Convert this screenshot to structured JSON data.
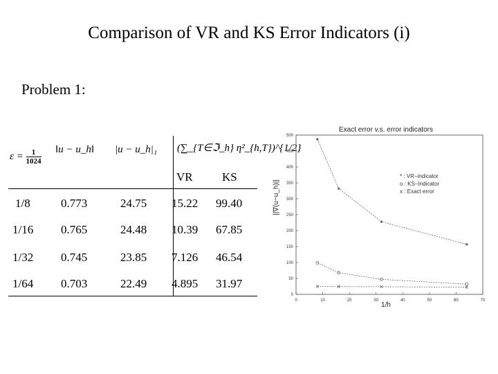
{
  "title": "Comparison of VR and KS Error Indicators (i)",
  "subtitle": "Problem 1:",
  "table": {
    "header": {
      "eps_label": "ε =",
      "eps_num": "1",
      "eps_den": "1024",
      "col1": "‖u − u_h‖",
      "col2": "|u − u_h|₁",
      "col3": "(∑_{T∈ℑ_h} η²_{h,T})^{1/2}",
      "vr": "VR",
      "ks": "KS"
    },
    "rows": [
      [
        "1/8",
        "0.773",
        "24.75",
        "15.22",
        "99.40"
      ],
      [
        "1/16",
        "0.765",
        "24.48",
        "10.39",
        "67.85"
      ],
      [
        "1/32",
        "0.745",
        "23.85",
        "7.126",
        "46.54"
      ],
      [
        "1/64",
        "0.703",
        "22.49",
        "4.895",
        "31.97"
      ]
    ]
  },
  "chart_data": {
    "type": "line",
    "title": "Exact error v.s. error indicators",
    "xlabel": "1/h",
    "ylabel": "||∇(u−u_h)||",
    "xlim": [
      0,
      70
    ],
    "ylim": [
      0,
      500
    ],
    "xticks": [
      "0",
      "10",
      "20",
      "30",
      "40",
      "50",
      "60",
      "70"
    ],
    "yticks": [
      "0",
      "50",
      "100",
      "150",
      "200",
      "250",
      "300",
      "350",
      "400",
      "450",
      "500"
    ],
    "legend_position": "right-middle",
    "series": [
      {
        "name": "* : VR−indicator",
        "marker": "*",
        "x": [
          8,
          16,
          32,
          64
        ],
        "y": [
          487,
          332,
          228,
          157
        ]
      },
      {
        "name": "o : KS−Indicator",
        "marker": "o",
        "x": [
          8,
          16,
          32,
          64
        ],
        "y": [
          99,
          68,
          47,
          32
        ]
      },
      {
        "name": "x : Exact error",
        "marker": "x",
        "x": [
          8,
          16,
          32,
          64
        ],
        "y": [
          25,
          24.5,
          24,
          22.5
        ]
      }
    ],
    "color": "#555555"
  }
}
